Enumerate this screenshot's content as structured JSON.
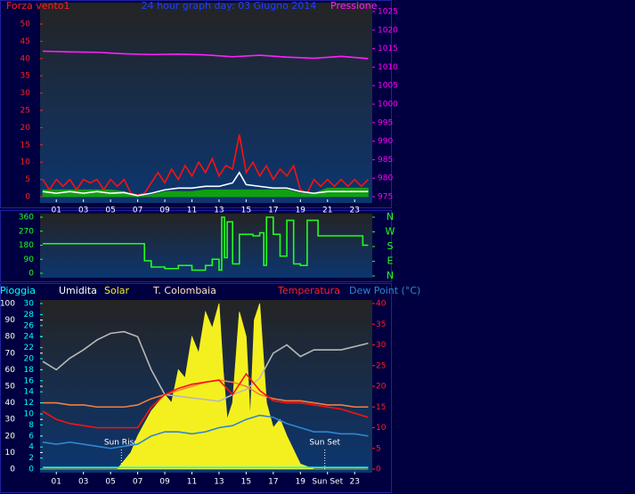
{
  "chart_data": [
    {
      "type": "line",
      "title": "24 hour graph day: 03 Giugno 2014",
      "xlim": [
        0,
        24.3
      ],
      "xticks": [
        {
          "value": 1,
          "label": "01"
        },
        {
          "value": 3,
          "label": "03"
        },
        {
          "value": 5,
          "label": "05"
        },
        {
          "value": 7,
          "label": "07"
        },
        {
          "value": 9,
          "label": "09"
        },
        {
          "value": 11,
          "label": "11"
        },
        {
          "value": 13,
          "label": "13"
        },
        {
          "value": 15,
          "label": "15"
        },
        {
          "value": 17,
          "label": "17"
        },
        {
          "value": 19,
          "label": "19"
        },
        {
          "value": 21,
          "label": "21"
        },
        {
          "value": 23,
          "label": "23"
        }
      ],
      "ylim": [
        0,
        50
      ],
      "yticks": [
        0,
        5,
        10,
        15,
        20,
        25,
        30,
        35,
        40,
        45,
        50
      ],
      "ycolor": "#ff2020",
      "y2lim": [
        975,
        1025
      ],
      "y2ticks": [
        975,
        980,
        985,
        990,
        995,
        1000,
        1005,
        1010,
        1015,
        1020,
        1025
      ],
      "y2color": "#ff00ff",
      "series": [
        {
          "color": "#10a010",
          "area": true,
          "x": [
            0,
            1,
            2,
            3,
            4,
            5,
            6,
            7,
            8,
            9,
            10,
            11,
            12,
            13,
            14,
            15,
            16,
            17,
            18,
            19,
            20,
            21,
            22,
            23,
            24
          ],
          "values": [
            2,
            2,
            2,
            2,
            2,
            2,
            1.5,
            0,
            0.5,
            1.5,
            1.5,
            1.5,
            2,
            2,
            2,
            2,
            2,
            2,
            2,
            1,
            1,
            2.5,
            2.5,
            2.5,
            2.5
          ]
        },
        {
          "name": "Forza vento1",
          "color": "#ff1010",
          "x": [
            0,
            0.5,
            1,
            1.5,
            2,
            2.5,
            3,
            3.5,
            4,
            4.5,
            5,
            5.5,
            6,
            6.5,
            7,
            7.5,
            8,
            8.5,
            9,
            9.5,
            10,
            10.5,
            11,
            11.5,
            12,
            12.5,
            13,
            13.5,
            14,
            14.5,
            15,
            15.5,
            16,
            16.5,
            17,
            17.5,
            18,
            18.5,
            19,
            19.5,
            20,
            20.5,
            21,
            21.5,
            22,
            22.5,
            23,
            23.5,
            24
          ],
          "values": [
            5,
            2,
            5,
            3,
            5,
            2,
            5,
            4,
            5,
            2,
            5,
            3,
            5,
            1,
            0.5,
            1,
            4,
            7,
            4,
            8,
            5,
            9,
            6,
            10,
            7,
            11,
            6,
            9,
            8,
            18,
            7,
            10,
            6,
            9,
            5,
            8,
            6,
            9,
            2,
            1,
            5,
            3,
            5,
            3,
            5,
            3,
            5,
            3,
            5
          ]
        },
        {
          "color": "#ffffff",
          "x": [
            0,
            1,
            2,
            3,
            4,
            5,
            6,
            7,
            8,
            9,
            10,
            11,
            12,
            13,
            14,
            14.5,
            15,
            16,
            17,
            18,
            19,
            20,
            21,
            22,
            23,
            24
          ],
          "values": [
            1.5,
            1,
            1.5,
            1,
            1.5,
            1,
            1.2,
            0.3,
            1,
            2,
            2.5,
            2.5,
            3,
            3,
            4,
            7,
            3.5,
            3,
            2.5,
            2.5,
            1.5,
            1,
            1.5,
            1.5,
            1.5,
            1.5
          ]
        },
        {
          "name": "Pressione",
          "color": "#ff20ff",
          "axis": "y2",
          "x": [
            0,
            2,
            4,
            6,
            8,
            10,
            12,
            14,
            16,
            18,
            20,
            22,
            24
          ],
          "values": [
            1014.3,
            1014.1,
            1014,
            1013.6,
            1013.4,
            1013.5,
            1013.3,
            1012.8,
            1013.2,
            1012.7,
            1012.4,
            1012.9,
            1012.3
          ]
        }
      ]
    },
    {
      "type": "line",
      "xlim": [
        0,
        24.3
      ],
      "ylim": [
        0,
        360
      ],
      "yticks": [
        0,
        90,
        180,
        270,
        360
      ],
      "ycolor": "#20ff20",
      "y2lim": [
        0,
        360
      ],
      "y2ticks": [
        {
          "value": 0,
          "label": "N"
        },
        {
          "value": 90,
          "label": "E"
        },
        {
          "value": 180,
          "label": "S"
        },
        {
          "value": 270,
          "label": "W"
        },
        {
          "value": 360,
          "label": "N"
        }
      ],
      "y2color": "#20ff20",
      "series": [
        {
          "color": "#20ff20",
          "step": true,
          "x": [
            0,
            7.2,
            7.5,
            8,
            9,
            10,
            11,
            12,
            12.5,
            13,
            13.2,
            13.4,
            13.6,
            14,
            14.5,
            15,
            15.5,
            16,
            16.3,
            16.5,
            17,
            17.5,
            18,
            18.5,
            19,
            19.5,
            20,
            20.3,
            21,
            22,
            23.4,
            23.6,
            24
          ],
          "values": [
            190,
            190,
            80,
            40,
            30,
            50,
            20,
            50,
            90,
            20,
            360,
            100,
            330,
            60,
            250,
            250,
            240,
            260,
            50,
            360,
            250,
            110,
            340,
            60,
            50,
            340,
            340,
            240,
            240,
            240,
            240,
            180,
            180
          ]
        }
      ]
    },
    {
      "type": "line",
      "xlim": [
        0,
        24.3
      ],
      "xticks": [
        {
          "value": 1,
          "label": "01"
        },
        {
          "value": 3,
          "label": "03"
        },
        {
          "value": 5,
          "label": "05"
        },
        {
          "value": 7,
          "label": "07"
        },
        {
          "value": 9,
          "label": "09"
        },
        {
          "value": 11,
          "label": "11"
        },
        {
          "value": 13,
          "label": "13"
        },
        {
          "value": 15,
          "label": "15"
        },
        {
          "value": 17,
          "label": "17"
        },
        {
          "value": 19,
          "label": "19"
        },
        {
          "value": 21,
          "label": "Sun Set"
        },
        {
          "value": 23,
          "label": "23"
        }
      ],
      "ylim": [
        0,
        100
      ],
      "yticks": [
        0,
        10,
        20,
        30,
        40,
        50,
        60,
        70,
        80,
        90,
        100
      ],
      "ycolor": "#ffffff",
      "y2lim": [
        0,
        30
      ],
      "y2ticks": [
        0,
        2,
        4,
        6,
        8,
        10,
        12,
        14,
        16,
        18,
        20,
        22,
        24,
        26,
        28,
        30
      ],
      "y2color": "#00ffff",
      "y3lim": [
        0,
        40
      ],
      "y3ticks": [
        0,
        5,
        10,
        15,
        20,
        25,
        30,
        35,
        40
      ],
      "y3color": "#ff2020",
      "annotations": [
        {
          "text": "Sun Rise",
          "x": 5.8
        },
        {
          "text": "Sun Set",
          "x": 20.8
        }
      ],
      "series": [
        {
          "name": "Pioggia",
          "color": "#00ffff",
          "axis": "y2",
          "x": [
            0,
            2,
            4,
            6,
            8,
            10,
            12,
            14,
            16,
            18,
            20,
            22,
            24
          ],
          "values": [
            0.3,
            0.3,
            0.3,
            0.3,
            0.3,
            0.3,
            0.3,
            0.3,
            0.3,
            0.3,
            0.3,
            0.3,
            0.3
          ]
        },
        {
          "name": "Umidita",
          "color": "#b8b8b8",
          "x": [
            0,
            1,
            2,
            3,
            4,
            5,
            6,
            7,
            8,
            9,
            10,
            11,
            12,
            13,
            14,
            15,
            16,
            17,
            18,
            19,
            20,
            21,
            22,
            23,
            24
          ],
          "values": [
            65,
            60,
            67,
            72,
            78,
            82,
            83,
            80,
            60,
            45,
            44,
            43,
            42,
            41,
            45,
            48,
            55,
            70,
            75,
            68,
            72,
            72,
            72,
            74,
            76
          ]
        },
        {
          "name": "Solar",
          "color": "#f4f020",
          "area": true,
          "x": [
            0,
            5.5,
            6.5,
            7,
            8,
            9,
            9.5,
            10,
            10.5,
            11,
            11.5,
            12,
            12.5,
            13,
            13.3,
            13.6,
            14,
            14.5,
            15,
            15.3,
            15.6,
            16,
            16.5,
            17,
            17.5,
            18,
            19,
            20,
            24
          ],
          "values": [
            0,
            0,
            10,
            20,
            35,
            45,
            40,
            60,
            55,
            80,
            70,
            95,
            85,
            100,
            60,
            30,
            40,
            95,
            80,
            30,
            90,
            100,
            40,
            25,
            30,
            20,
            3,
            0,
            0
          ]
        },
        {
          "name": "T. Colombaia",
          "color": "#f08040",
          "axis": "y3",
          "x": [
            0,
            1,
            2,
            3,
            4,
            5,
            6,
            7,
            8,
            9,
            10,
            11,
            12,
            13,
            14,
            15,
            16,
            17,
            18,
            19,
            20,
            21,
            22,
            23,
            24
          ],
          "values": [
            16,
            16,
            15.5,
            15.5,
            15,
            15,
            15,
            15.5,
            17,
            18,
            19,
            20,
            21,
            21.5,
            21,
            20,
            18,
            17,
            16.5,
            16.5,
            16,
            15.5,
            15.5,
            15,
            15
          ]
        },
        {
          "name": "Temperatura",
          "color": "#ff1010",
          "axis": "y3",
          "x": [
            0,
            1,
            2,
            3,
            4,
            5,
            6,
            7,
            8,
            9,
            10,
            11,
            12,
            13,
            14,
            15,
            16,
            17,
            18,
            19,
            20,
            21,
            22,
            23,
            24
          ],
          "values": [
            14,
            12,
            11,
            10.5,
            10,
            10,
            10,
            10,
            15,
            18,
            19.5,
            20.5,
            21,
            21.5,
            18,
            23,
            19,
            16.5,
            16,
            16,
            15.5,
            15,
            14.5,
            13.5,
            12.5
          ]
        },
        {
          "name": "Dew Point (°C)",
          "color": "#2e86d0",
          "axis": "y3",
          "x": [
            0,
            1,
            2,
            3,
            4,
            5,
            6,
            7,
            8,
            9,
            10,
            11,
            12,
            13,
            14,
            15,
            16,
            17,
            18,
            19,
            20,
            21,
            22,
            23,
            24
          ],
          "values": [
            6.5,
            6,
            6.5,
            6,
            5.5,
            5,
            5.5,
            6,
            8,
            9,
            9,
            8.5,
            9,
            10,
            10.5,
            12,
            13,
            12.5,
            11,
            10,
            9,
            9,
            8.5,
            8.5,
            8
          ]
        }
      ]
    }
  ]
}
